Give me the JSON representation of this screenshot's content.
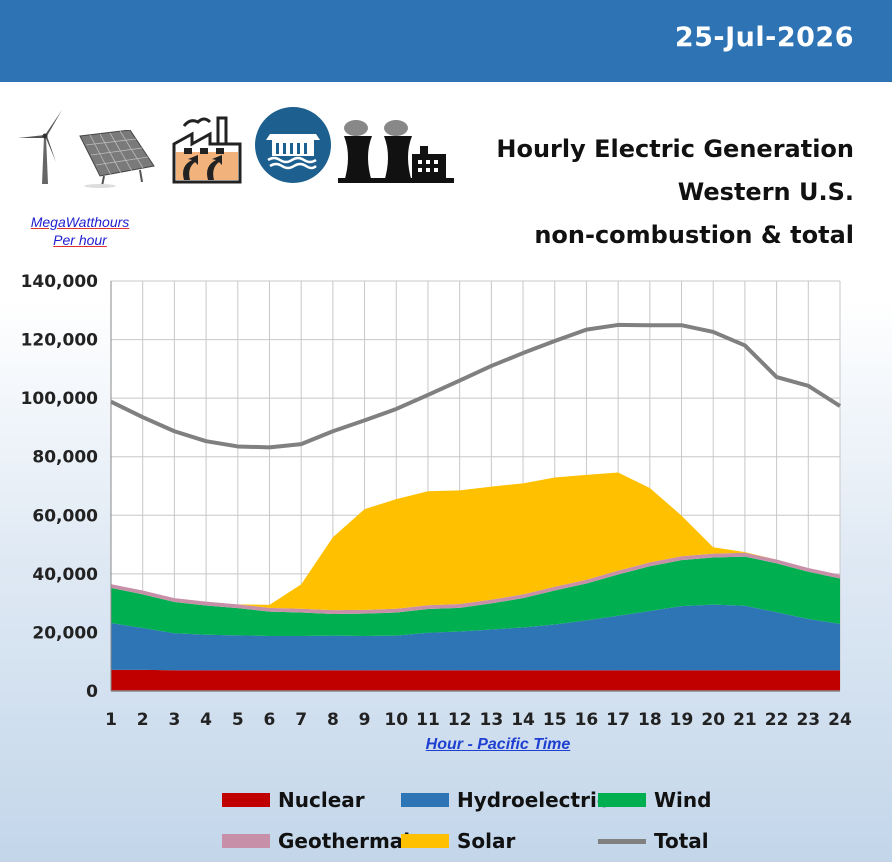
{
  "header": {
    "date": "25-Jul-2026"
  },
  "units": {
    "line1": "MegaWatthours",
    "line2": "Per hour"
  },
  "title": {
    "line1": "Hourly Electric Generation",
    "line2": "Western U.S.",
    "line3": "non-combustion & total"
  },
  "icons": [
    "wind-turbine-icon",
    "solar-panel-icon",
    "geothermal-plant-icon",
    "hydro-dam-icon",
    "nuclear-plant-icon"
  ],
  "colors": {
    "header_bg": "#2e74b5",
    "Nuclear": "#c00000",
    "Hydroelectric": "#2e75b6",
    "Wind": "#00b050",
    "Geothermal": "#c890a8",
    "Solar": "#ffc000",
    "Total": "#808080"
  },
  "chart_data": {
    "type": "area",
    "title": "Hourly Electric Generation Western U.S. non-combustion & total",
    "xlabel": "Hour - Pacific Time",
    "ylabel": "MegaWatthours Per hour",
    "x": [
      1,
      2,
      3,
      4,
      5,
      6,
      7,
      8,
      9,
      10,
      11,
      12,
      13,
      14,
      15,
      16,
      17,
      18,
      19,
      20,
      21,
      22,
      23,
      24
    ],
    "ylim": [
      0,
      140000
    ],
    "yticks": [
      "0",
      "20,000",
      "40,000",
      "60,000",
      "80,000",
      "100,000",
      "120,000",
      "140,000"
    ],
    "grid": true,
    "legend_position": "bottom",
    "stacked": true,
    "series": [
      {
        "name": "Nuclear",
        "type": "area",
        "values": [
          7200,
          7200,
          7100,
          7100,
          7100,
          7100,
          7100,
          7100,
          7100,
          7100,
          7100,
          7100,
          7100,
          7100,
          7100,
          7100,
          7100,
          7100,
          7100,
          7100,
          7100,
          7100,
          7100,
          7100
        ]
      },
      {
        "name": "Hydroelectric",
        "type": "area",
        "values": [
          16000,
          14300,
          12600,
          12100,
          11900,
          11700,
          11700,
          11800,
          11700,
          11800,
          12800,
          13200,
          13900,
          14600,
          15600,
          17000,
          18600,
          20200,
          21900,
          22400,
          22000,
          19800,
          17500,
          15800
        ]
      },
      {
        "name": "Wind",
        "type": "area",
        "values": [
          12000,
          11500,
          10700,
          10000,
          9300,
          8300,
          8000,
          7400,
          7600,
          7900,
          8100,
          8100,
          8900,
          10000,
          11600,
          12600,
          14100,
          15300,
          15700,
          16100,
          16800,
          16700,
          16100,
          15500
        ]
      },
      {
        "name": "Geothermal",
        "type": "area",
        "values": [
          1300,
          1300,
          1300,
          1300,
          1300,
          1300,
          1300,
          1300,
          1300,
          1300,
          1300,
          1300,
          1300,
          1300,
          1300,
          1300,
          1300,
          1300,
          1300,
          1300,
          1300,
          1300,
          1300,
          1300
        ]
      },
      {
        "name": "Solar",
        "type": "area",
        "values": [
          0,
          0,
          0,
          0,
          0,
          1000,
          8300,
          24900,
          34400,
          37400,
          38900,
          38800,
          38600,
          37900,
          37300,
          35800,
          33500,
          25400,
          13900,
          2200,
          200,
          0,
          0,
          0
        ]
      },
      {
        "name": "Total",
        "type": "line",
        "values": [
          98800,
          93500,
          88700,
          85300,
          83500,
          83200,
          84300,
          88700,
          92400,
          96300,
          101100,
          106000,
          111000,
          115400,
          119500,
          123400,
          125000,
          124900,
          124900,
          122600,
          118000,
          107200,
          104200,
          97300
        ]
      }
    ]
  },
  "legend": [
    {
      "name": "Nuclear"
    },
    {
      "name": "Hydroelectric"
    },
    {
      "name": "Wind"
    },
    {
      "name": "Geothermal"
    },
    {
      "name": "Solar"
    },
    {
      "name": "Total"
    }
  ]
}
